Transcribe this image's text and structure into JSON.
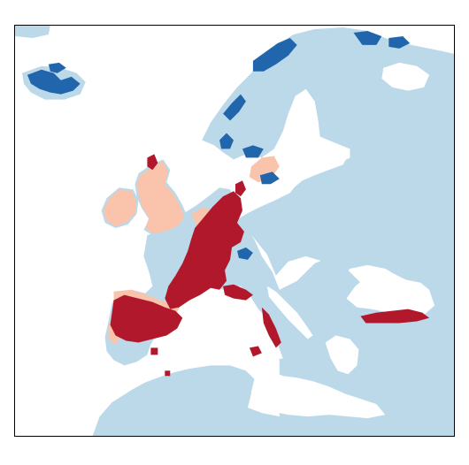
{
  "map": {
    "colors": {
      "water": "#ffffff",
      "land": "#bcd9ea",
      "blue_category": "#2166ac",
      "light_red_category": "#f9c4ab",
      "dark_red_category": "#b2182b"
    },
    "legend": []
  }
}
